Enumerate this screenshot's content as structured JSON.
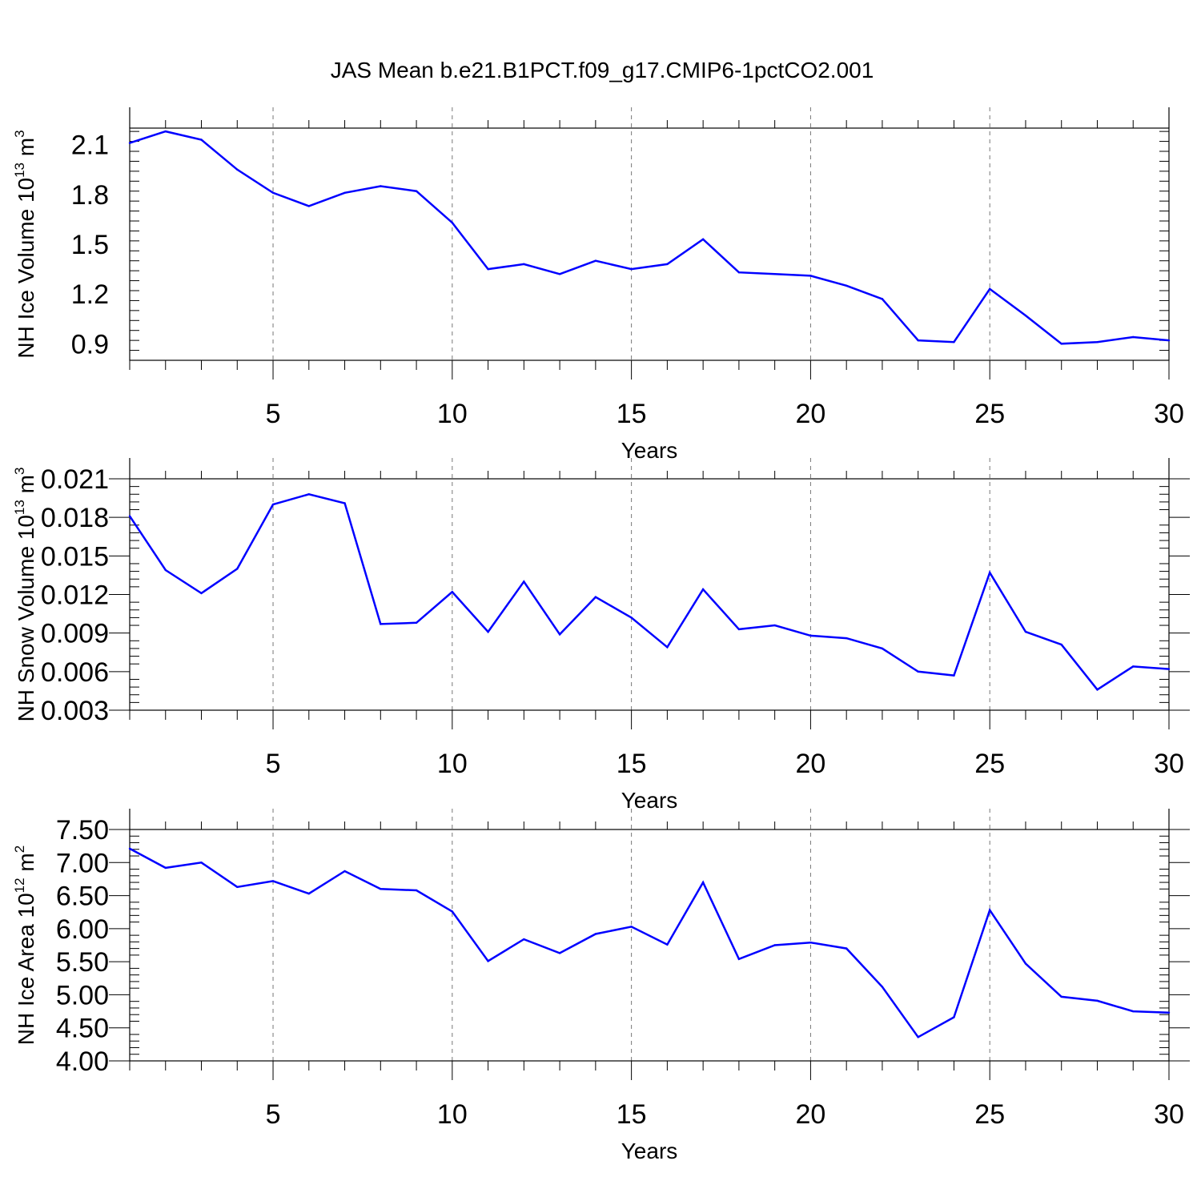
{
  "figure_title": "JAS Mean b.e21.B1PCT.f09_g17.CMIP6-1pctCO2.001",
  "chart_data": [
    {
      "type": "line",
      "title": "",
      "xlabel": "Years",
      "ylabel_main": "NH Ice Volume 10",
      "ylabel_sup": "13",
      "ylabel_unit": " m",
      "ylabel_unit_sup": "3",
      "xlim": [
        1,
        30
      ],
      "ylim": [
        0.8,
        2.2
      ],
      "yticks": [
        0.9,
        1.2,
        1.5,
        1.8,
        2.1
      ],
      "ytick_labels": [
        "0.9",
        "1.2",
        "1.5",
        "1.8",
        "2.1"
      ],
      "xticks": [
        5,
        10,
        15,
        20,
        25,
        30
      ],
      "xtick_labels": [
        "5",
        "10",
        "15",
        "20",
        "25",
        "30"
      ],
      "grid": "vertical dashed at major x ticks",
      "line_color": "#0000ff",
      "x": [
        1,
        2,
        3,
        4,
        5,
        6,
        7,
        8,
        9,
        10,
        11,
        12,
        13,
        14,
        15,
        16,
        17,
        18,
        19,
        20,
        21,
        22,
        23,
        24,
        25,
        26,
        27,
        28,
        29,
        30
      ],
      "values": [
        2.11,
        2.18,
        2.13,
        1.95,
        1.81,
        1.73,
        1.81,
        1.85,
        1.82,
        1.63,
        1.35,
        1.38,
        1.32,
        1.4,
        1.35,
        1.38,
        1.53,
        1.33,
        1.32,
        1.31,
        1.25,
        1.17,
        0.92,
        0.91,
        1.23,
        1.07,
        0.9,
        0.91,
        0.94,
        0.92
      ]
    },
    {
      "type": "line",
      "title": "",
      "xlabel": "Years",
      "ylabel_main": "NH Snow Volume 10",
      "ylabel_sup": "13",
      "ylabel_unit": " m",
      "ylabel_unit_sup": "3",
      "xlim": [
        1,
        30
      ],
      "ylim": [
        0.003,
        0.021
      ],
      "yticks": [
        0.003,
        0.006,
        0.009,
        0.012,
        0.015,
        0.018,
        0.021
      ],
      "ytick_labels": [
        "0.003",
        "0.006",
        "0.009",
        "0.012",
        "0.015",
        "0.018",
        "0.021"
      ],
      "xticks": [
        5,
        10,
        15,
        20,
        25,
        30
      ],
      "xtick_labels": [
        "5",
        "10",
        "15",
        "20",
        "25",
        "30"
      ],
      "grid": "vertical dashed at major x ticks",
      "line_color": "#0000ff",
      "x": [
        1,
        2,
        3,
        4,
        5,
        6,
        7,
        8,
        9,
        10,
        11,
        12,
        13,
        14,
        15,
        16,
        17,
        18,
        19,
        20,
        21,
        22,
        23,
        24,
        25,
        26,
        27,
        28,
        29,
        30
      ],
      "values": [
        0.0181,
        0.0139,
        0.0121,
        0.014,
        0.019,
        0.0198,
        0.0191,
        0.0097,
        0.0098,
        0.0122,
        0.0091,
        0.013,
        0.0089,
        0.0118,
        0.0102,
        0.0079,
        0.0124,
        0.0093,
        0.0096,
        0.0088,
        0.0086,
        0.0078,
        0.006,
        0.0057,
        0.0137,
        0.0091,
        0.0081,
        0.0046,
        0.0064,
        0.0062
      ]
    },
    {
      "type": "line",
      "title": "",
      "xlabel": "Years",
      "ylabel_main": "NH Ice Area 10",
      "ylabel_sup": "12",
      "ylabel_unit": " m",
      "ylabel_unit_sup": "2",
      "xlim": [
        1,
        30
      ],
      "ylim": [
        4.0,
        7.5
      ],
      "yticks": [
        4.0,
        4.5,
        5.0,
        5.5,
        6.0,
        6.5,
        7.0,
        7.5
      ],
      "ytick_labels": [
        "4.00",
        "4.50",
        "5.00",
        "5.50",
        "6.00",
        "6.50",
        "7.00",
        "7.50"
      ],
      "xticks": [
        5,
        10,
        15,
        20,
        25,
        30
      ],
      "xtick_labels": [
        "5",
        "10",
        "15",
        "20",
        "25",
        "30"
      ],
      "grid": "vertical dashed at major x ticks",
      "line_color": "#0000ff",
      "x": [
        1,
        2,
        3,
        4,
        5,
        6,
        7,
        8,
        9,
        10,
        11,
        12,
        13,
        14,
        15,
        16,
        17,
        18,
        19,
        20,
        21,
        22,
        23,
        24,
        25,
        26,
        27,
        28,
        29,
        30
      ],
      "values": [
        7.21,
        6.92,
        7.0,
        6.63,
        6.72,
        6.53,
        6.87,
        6.6,
        6.58,
        6.26,
        5.51,
        5.84,
        5.63,
        5.92,
        6.03,
        5.76,
        6.7,
        5.54,
        5.75,
        5.79,
        5.7,
        5.12,
        4.36,
        4.66,
        6.28,
        5.47,
        4.97,
        4.91,
        4.75,
        4.73
      ]
    }
  ]
}
